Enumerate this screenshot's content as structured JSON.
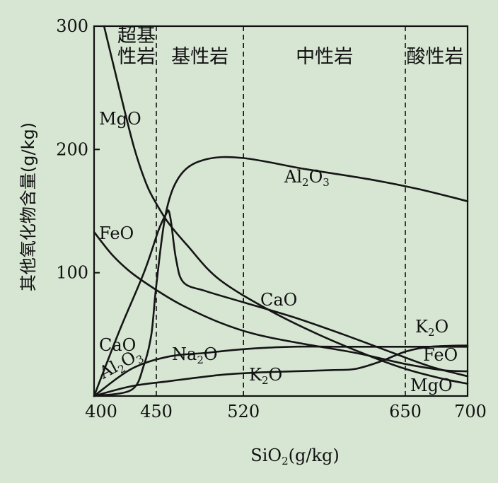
{
  "chart_data": {
    "type": "line",
    "title": "",
    "xlabel": "SiO₂(g/kg)",
    "ylabel": "其他氧化物含量(g/kg)",
    "xlim": [
      400,
      700
    ],
    "ylim": [
      0,
      300
    ],
    "x_ticks": [
      "400",
      "450",
      "520",
      "650",
      "700"
    ],
    "y_ticks": [
      "300",
      "200",
      "100"
    ],
    "zones": [
      {
        "label_lines": [
          "超基",
          "性岩"
        ],
        "from": 400,
        "to": 450
      },
      {
        "label_lines": [
          "基性岩"
        ],
        "from": 450,
        "to": 520
      },
      {
        "label_lines": [
          "中性岩"
        ],
        "from": 520,
        "to": 650
      },
      {
        "label_lines": [
          "酸性岩"
        ],
        "from": 650,
        "to": 700
      }
    ],
    "boundaries": [
      450,
      520,
      650
    ],
    "series": [
      {
        "name": "MgO",
        "label": {
          "base": "MgO",
          "sub": ""
        },
        "x": [
          408,
          420,
          432,
          442,
          450,
          460,
          475,
          500,
          540,
          580,
          620,
          650,
          680,
          700
        ],
        "y": [
          300,
          250,
          202,
          172,
          156,
          140,
          122,
          95,
          70,
          50,
          33,
          22,
          14,
          10
        ]
      },
      {
        "name": "FeO",
        "label": {
          "base": "FeO",
          "sub": ""
        },
        "x": [
          400,
          415,
          430,
          450,
          470,
          500,
          530,
          570,
          610,
          650,
          680,
          700
        ],
        "y": [
          133,
          114,
          100,
          86,
          74,
          60,
          50,
          42,
          35,
          26,
          21,
          20
        ]
      },
      {
        "name": "CaO",
        "label": {
          "base": "CaO",
          "sub": ""
        },
        "x": [
          400,
          420,
          440,
          452,
          458,
          460,
          462,
          466,
          472,
          490,
          520,
          560,
          600,
          640,
          670,
          700
        ],
        "y": [
          0,
          52,
          100,
          135,
          148,
          150,
          140,
          110,
          92,
          85,
          76,
          64,
          50,
          35,
          24,
          16
        ]
      },
      {
        "name": "Al₂O₃",
        "label": {
          "base": "Al",
          "sub": "2",
          "base2": "O",
          "sub2": "3"
        },
        "x": [
          400,
          430,
          440,
          446,
          450,
          458,
          470,
          490,
          520,
          570,
          620,
          660,
          700
        ],
        "y": [
          0,
          5,
          25,
          50,
          90,
          150,
          180,
          192,
          193,
          184,
          176,
          168,
          158
        ]
      },
      {
        "name": "Na₂O",
        "label": {
          "base": "Na",
          "sub": "2",
          "base2": "O",
          "sub2": ""
        },
        "x": [
          400,
          430,
          460,
          490,
          520,
          560,
          600,
          640,
          670,
          700
        ],
        "y": [
          0,
          22,
          32,
          35,
          38,
          40,
          40,
          40,
          40,
          40
        ]
      },
      {
        "name": "K₂O",
        "label": {
          "base": "K",
          "sub": "2",
          "base2": "O",
          "sub2": ""
        },
        "x": [
          400,
          430,
          460,
          500,
          530,
          560,
          590,
          610,
          630,
          650,
          670,
          700
        ],
        "y": [
          0,
          8,
          12,
          17,
          19,
          20,
          21,
          22,
          28,
          36,
          40,
          41
        ]
      }
    ],
    "grid": false,
    "legend": "none"
  }
}
